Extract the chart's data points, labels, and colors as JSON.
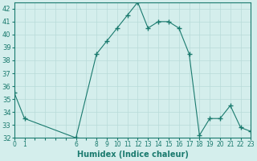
{
  "x": [
    0,
    1,
    6,
    8,
    9,
    10,
    11,
    12,
    13,
    14,
    15,
    16,
    17,
    18,
    19,
    20,
    21,
    22,
    23
  ],
  "y": [
    35.5,
    33.5,
    32.0,
    38.5,
    39.5,
    40.5,
    41.5,
    42.5,
    40.5,
    41.0,
    41.0,
    40.5,
    38.5,
    32.2,
    33.5,
    33.5,
    34.5,
    32.8,
    32.5
  ],
  "xlim": [
    0,
    23
  ],
  "ylim": [
    32,
    42.5
  ],
  "yticks": [
    32,
    33,
    34,
    35,
    36,
    37,
    38,
    39,
    40,
    41,
    42
  ],
  "xticks_shown": [
    0,
    1,
    6,
    8,
    9,
    10,
    11,
    12,
    13,
    14,
    15,
    16,
    17,
    18,
    19,
    20,
    21,
    22,
    23
  ],
  "xlabel": "Humidex (Indice chaleur)",
  "line_color": "#1a7a6e",
  "marker": "+",
  "bg_color": "#d4eeec",
  "grid_color": "#b8dbd8",
  "tick_fontsize": 5.5,
  "xlabel_fontsize": 7,
  "ytick_fontsize": 6
}
